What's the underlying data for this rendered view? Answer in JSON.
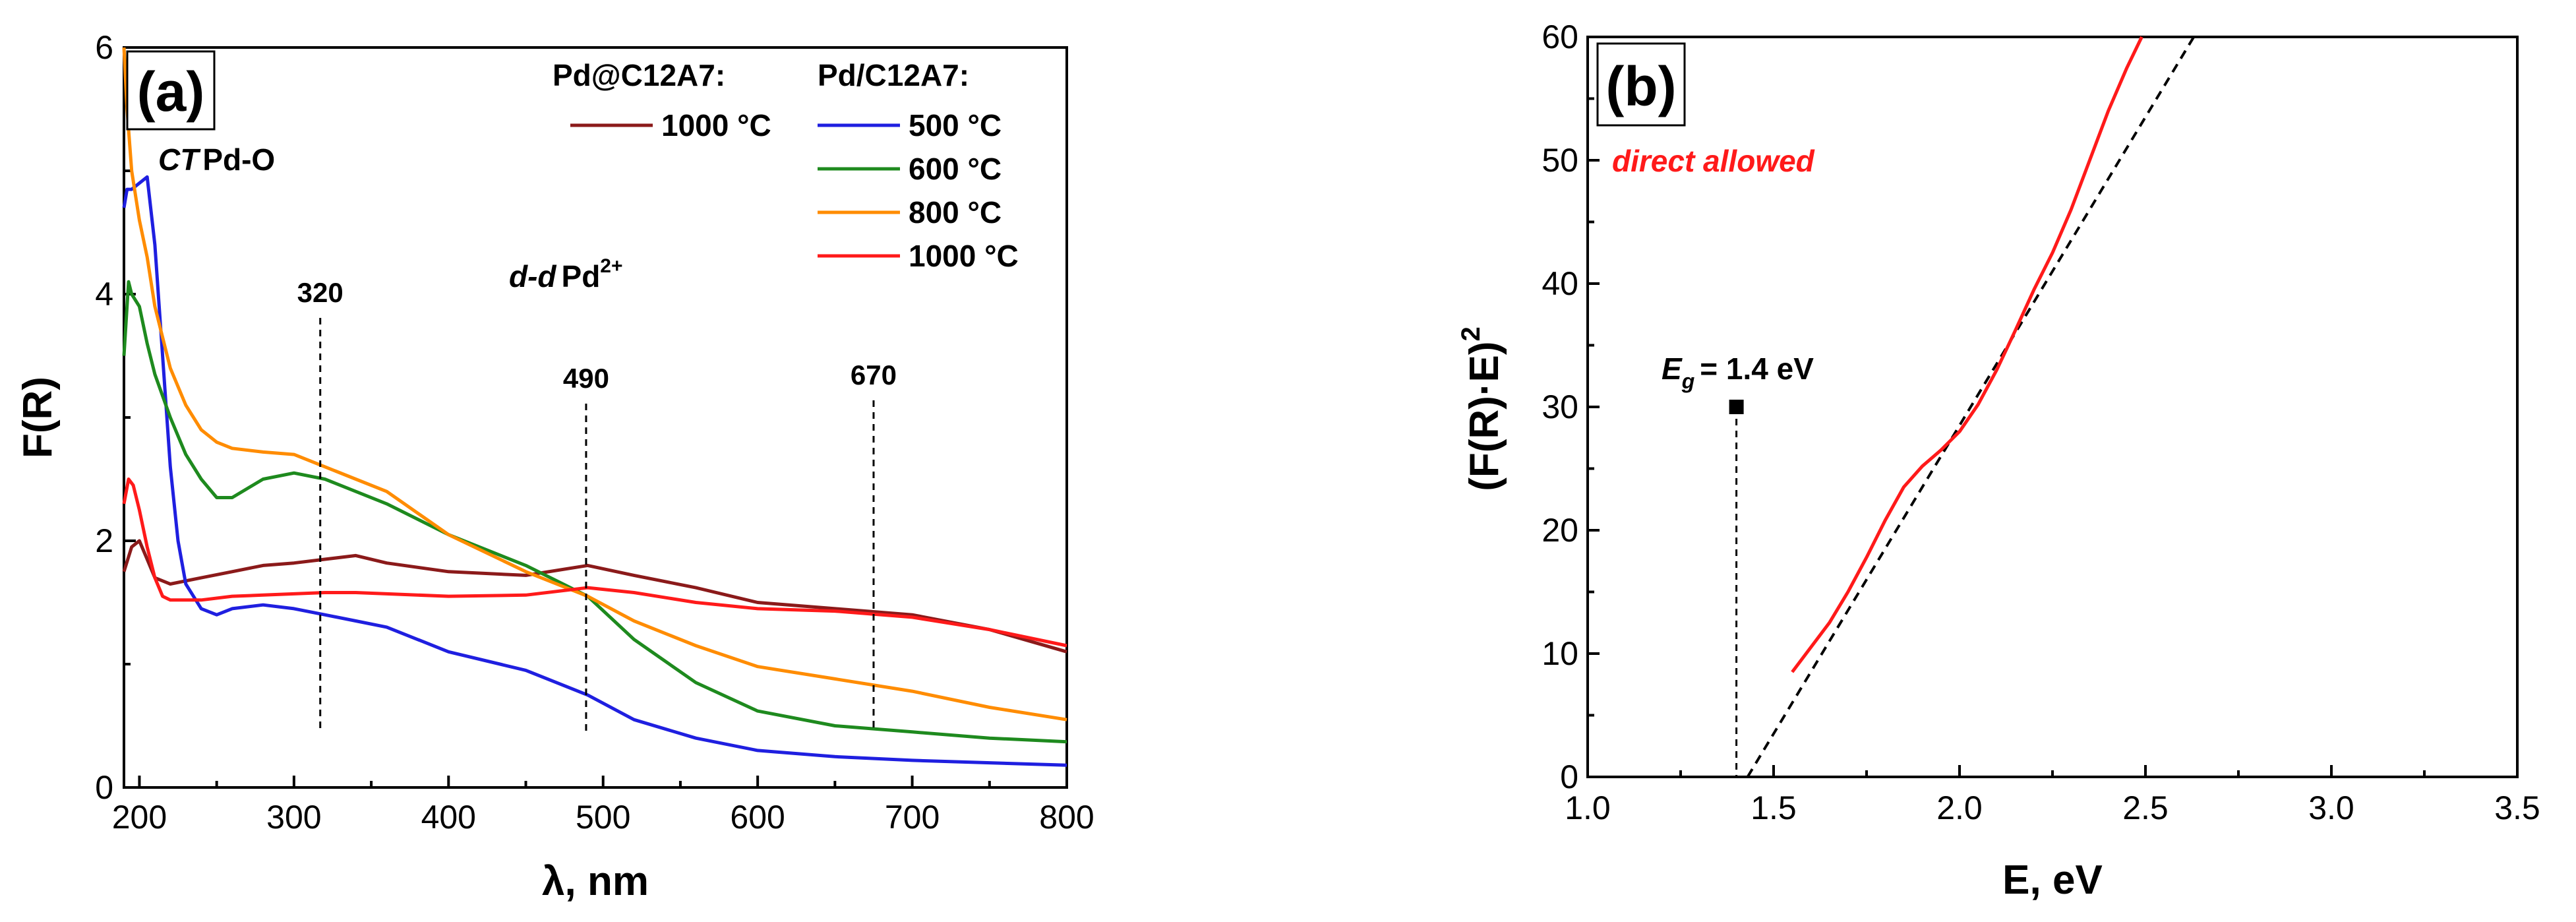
{
  "chart_data": [
    {
      "type": "line",
      "panel_label": "(a)",
      "xlabel": "λ, nm",
      "ylabel": "F(R)",
      "xlim": [
        190,
        800
      ],
      "ylim": [
        0,
        6
      ],
      "xticks": [
        200,
        300,
        400,
        500,
        600,
        700,
        800
      ],
      "yticks": [
        0,
        2,
        4,
        6
      ],
      "legend": {
        "group1_title": "Pd@C12A7:",
        "group2_title": "Pd/C12A7:"
      },
      "annotations": {
        "ct_label": "CT",
        "ct_suffix": "Pd-O",
        "dd_label": "d-d",
        "dd_suffix": "Pd",
        "dd_sup": "2+"
      },
      "reference_lines": [
        {
          "x": 317,
          "label": "320"
        },
        {
          "x": 489,
          "label": "490"
        },
        {
          "x": 675,
          "label": "670"
        }
      ],
      "series": [
        {
          "name": "1000 °C",
          "group": "Pd@C12A7",
          "color": "#8B1A1A",
          "x": [
            190,
            195,
            200,
            205,
            210,
            220,
            240,
            260,
            280,
            300,
            320,
            340,
            360,
            400,
            450,
            490,
            520,
            560,
            600,
            650,
            700,
            750,
            800
          ],
          "y": [
            1.75,
            1.95,
            2.0,
            1.85,
            1.7,
            1.65,
            1.7,
            1.75,
            1.8,
            1.82,
            1.85,
            1.88,
            1.82,
            1.75,
            1.72,
            1.8,
            1.72,
            1.62,
            1.5,
            1.45,
            1.4,
            1.28,
            1.1
          ]
        },
        {
          "name": "500 °C",
          "group": "Pd/C12A7",
          "color": "#1F1FE0",
          "x": [
            190,
            192,
            195,
            200,
            205,
            210,
            215,
            220,
            225,
            230,
            240,
            250,
            260,
            280,
            300,
            320,
            340,
            360,
            400,
            450,
            490,
            520,
            560,
            600,
            650,
            700,
            750,
            800
          ],
          "y": [
            4.7,
            4.85,
            4.85,
            4.9,
            4.95,
            4.4,
            3.5,
            2.6,
            2.0,
            1.65,
            1.45,
            1.4,
            1.45,
            1.48,
            1.45,
            1.4,
            1.35,
            1.3,
            1.1,
            0.95,
            0.75,
            0.55,
            0.4,
            0.3,
            0.25,
            0.22,
            0.2,
            0.18
          ]
        },
        {
          "name": "600 °C",
          "group": "Pd/C12A7",
          "color": "#1E8A1E",
          "x": [
            190,
            193,
            195,
            200,
            205,
            210,
            220,
            230,
            240,
            250,
            260,
            280,
            300,
            320,
            340,
            360,
            400,
            450,
            490,
            520,
            560,
            600,
            650,
            700,
            750,
            800
          ],
          "y": [
            3.5,
            4.1,
            4.0,
            3.9,
            3.6,
            3.35,
            3.0,
            2.7,
            2.5,
            2.35,
            2.35,
            2.5,
            2.55,
            2.5,
            2.4,
            2.3,
            2.05,
            1.8,
            1.55,
            1.2,
            0.85,
            0.62,
            0.5,
            0.45,
            0.4,
            0.37
          ]
        },
        {
          "name": "800 °C",
          "group": "Pd/C12A7",
          "color": "#FF8C00",
          "x": [
            190,
            192,
            195,
            200,
            205,
            210,
            220,
            230,
            240,
            250,
            260,
            280,
            300,
            320,
            340,
            360,
            400,
            450,
            490,
            520,
            560,
            600,
            650,
            700,
            750,
            800
          ],
          "y": [
            6.0,
            5.5,
            5.0,
            4.6,
            4.3,
            3.9,
            3.4,
            3.1,
            2.9,
            2.8,
            2.75,
            2.72,
            2.7,
            2.6,
            2.5,
            2.4,
            2.05,
            1.75,
            1.55,
            1.35,
            1.15,
            0.98,
            0.88,
            0.78,
            0.65,
            0.55
          ]
        },
        {
          "name": "1000 °C",
          "group": "Pd/C12A7",
          "color": "#FF1A1A",
          "x": [
            190,
            193,
            196,
            200,
            205,
            210,
            215,
            220,
            240,
            260,
            280,
            300,
            320,
            340,
            360,
            400,
            450,
            490,
            520,
            560,
            600,
            650,
            700,
            750,
            800
          ],
          "y": [
            2.3,
            2.5,
            2.45,
            2.25,
            1.95,
            1.7,
            1.55,
            1.52,
            1.52,
            1.55,
            1.56,
            1.57,
            1.58,
            1.58,
            1.57,
            1.55,
            1.56,
            1.62,
            1.58,
            1.5,
            1.45,
            1.43,
            1.38,
            1.28,
            1.15
          ]
        }
      ]
    },
    {
      "type": "line",
      "panel_label": "(b)",
      "xlabel": "E, eV",
      "ylabel": "(F(R)·E)",
      "ylabel_sup": "2",
      "xlim": [
        1.0,
        3.5
      ],
      "ylim": [
        0,
        60
      ],
      "xticks": [
        1.0,
        1.5,
        2.0,
        2.5,
        3.0,
        3.5
      ],
      "xtick_labels": [
        "1.0",
        "1.5",
        "2.0",
        "2.5",
        "3.0",
        "3.5"
      ],
      "yticks": [
        0,
        10,
        20,
        30,
        40,
        50,
        60
      ],
      "annotations": {
        "transition": "direct allowed",
        "eg_symbol": "E",
        "eg_sub": "g",
        "eg_value": "= 1.4 eV"
      },
      "eg_marker": {
        "x": 1.4,
        "y": 30
      },
      "fit_line": {
        "x": [
          1.43,
          2.63
        ],
        "y": [
          0,
          60
        ]
      },
      "series": [
        {
          "name": "direct allowed",
          "color": "#FF1A1A",
          "x": [
            1.55,
            1.6,
            1.65,
            1.7,
            1.75,
            1.8,
            1.85,
            1.9,
            1.95,
            2.0,
            2.05,
            2.1,
            2.15,
            2.2,
            2.25,
            2.3,
            2.35,
            2.4,
            2.45,
            2.49
          ],
          "y": [
            8.5,
            10.5,
            12.5,
            15.0,
            17.8,
            20.8,
            23.5,
            25.2,
            26.5,
            28.0,
            30.2,
            33.0,
            36.2,
            39.5,
            42.5,
            46.0,
            50.0,
            54.0,
            57.5,
            60.0
          ]
        }
      ]
    }
  ]
}
